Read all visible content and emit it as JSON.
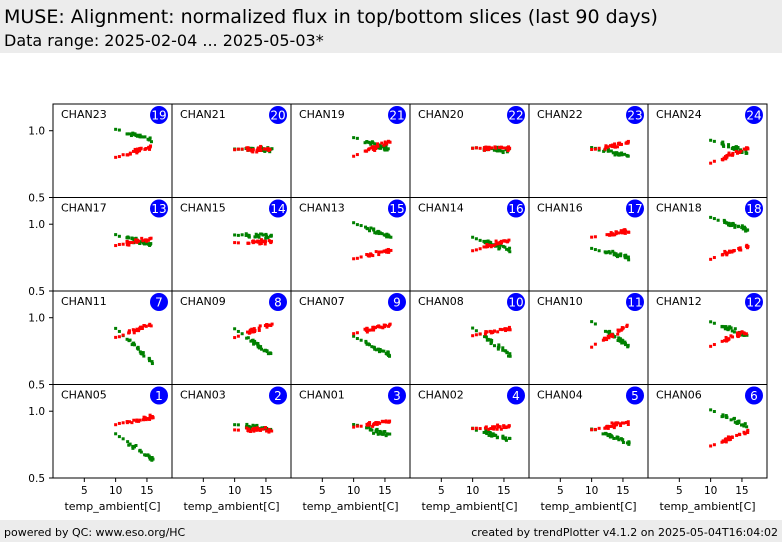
{
  "header": {
    "title": "MUSE: Alignment: normalized flux in top/bottom slices (last 90 days)",
    "subtitle": "Data range: 2025-02-04 ... 2025-05-03*"
  },
  "footer": {
    "left": "powered by QC: www.eso.org/HC",
    "right": "created by trendPlotter v4.1.2 on 2025-05-04T16:04:02"
  },
  "colors": {
    "top": "#ff0000",
    "bottom": "#008000",
    "badge": "#0000ff"
  },
  "chart_data": {
    "type": "scatter",
    "xlabel": "temp_ambient[C]",
    "ylabel": "",
    "xlim": [
      0,
      19
    ],
    "ylim": [
      0.5,
      1.2
    ],
    "xticks": [
      5,
      10,
      15
    ],
    "yticks": [
      0.5,
      1.0
    ],
    "grid": false,
    "panels": [
      {
        "label": "CHAN23",
        "badge": "19",
        "top": [
          0.8,
          0.87
        ],
        "bottom": [
          1.01,
          0.94
        ]
      },
      {
        "label": "CHAN21",
        "badge": "20",
        "top": [
          0.86,
          0.86
        ],
        "bottom": [
          0.86,
          0.86
        ]
      },
      {
        "label": "CHAN19",
        "badge": "21",
        "top": [
          0.81,
          0.9
        ],
        "bottom": [
          0.95,
          0.87
        ]
      },
      {
        "label": "CHAN20",
        "badge": "22",
        "top": [
          0.87,
          0.87
        ],
        "bottom": [
          0.87,
          0.86
        ]
      },
      {
        "label": "CHAN22",
        "badge": "23",
        "top": [
          0.86,
          0.9
        ],
        "bottom": [
          0.87,
          0.82
        ]
      },
      {
        "label": "CHAN24",
        "badge": "24",
        "top": [
          0.76,
          0.85
        ],
        "bottom": [
          0.93,
          0.85
        ]
      },
      {
        "label": "CHAN17",
        "badge": "13",
        "top": [
          0.84,
          0.89
        ],
        "bottom": [
          0.92,
          0.85
        ]
      },
      {
        "label": "CHAN15",
        "badge": "14",
        "top": [
          0.86,
          0.87
        ],
        "bottom": [
          0.92,
          0.91
        ]
      },
      {
        "label": "CHAN13",
        "badge": "15",
        "top": [
          0.74,
          0.8
        ],
        "bottom": [
          1.01,
          0.92
        ]
      },
      {
        "label": "CHAN14",
        "badge": "16",
        "top": [
          0.8,
          0.87
        ],
        "bottom": [
          0.9,
          0.82
        ]
      },
      {
        "label": "CHAN16",
        "badge": "17",
        "top": [
          0.9,
          0.94
        ],
        "bottom": [
          0.82,
          0.76
        ]
      },
      {
        "label": "CHAN18",
        "badge": "18",
        "top": [
          0.74,
          0.82
        ],
        "bottom": [
          1.05,
          0.97
        ]
      },
      {
        "label": "CHAN11",
        "badge": "7",
        "top": [
          0.85,
          0.94
        ],
        "bottom": [
          0.92,
          0.7
        ]
      },
      {
        "label": "CHAN09",
        "badge": "8",
        "top": [
          0.85,
          0.94
        ],
        "bottom": [
          0.92,
          0.75
        ]
      },
      {
        "label": "CHAN07",
        "badge": "9",
        "top": [
          0.88,
          0.94
        ],
        "bottom": [
          0.86,
          0.74
        ]
      },
      {
        "label": "CHAN08",
        "badge": "10",
        "top": [
          0.87,
          0.91
        ],
        "bottom": [
          0.92,
          0.75
        ]
      },
      {
        "label": "CHAN10",
        "badge": "11",
        "top": [
          0.78,
          0.92
        ],
        "bottom": [
          0.97,
          0.82
        ]
      },
      {
        "label": "CHAN12",
        "badge": "12",
        "top": [
          0.79,
          0.88
        ],
        "bottom": [
          0.97,
          0.88
        ]
      },
      {
        "label": "CHAN05",
        "badge": "1",
        "top": [
          0.9,
          0.95
        ],
        "bottom": [
          0.83,
          0.67
        ]
      },
      {
        "label": "CHAN03",
        "badge": "2",
        "top": [
          0.86,
          0.86
        ],
        "bottom": [
          0.9,
          0.87
        ]
      },
      {
        "label": "CHAN01",
        "badge": "3",
        "top": [
          0.88,
          0.92
        ],
        "bottom": [
          0.9,
          0.83
        ]
      },
      {
        "label": "CHAN02",
        "badge": "4",
        "top": [
          0.87,
          0.88
        ],
        "bottom": [
          0.87,
          0.8
        ]
      },
      {
        "label": "CHAN04",
        "badge": "5",
        "top": [
          0.86,
          0.91
        ],
        "bottom": [
          0.87,
          0.78
        ]
      },
      {
        "label": "CHAN06",
        "badge": "6",
        "top": [
          0.74,
          0.83
        ],
        "bottom": [
          1.01,
          0.9
        ]
      }
    ]
  }
}
